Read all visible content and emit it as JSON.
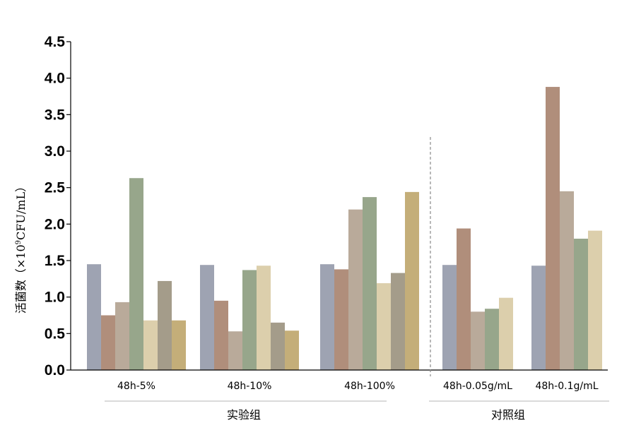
{
  "chart_data": {
    "type": "bar",
    "title": "",
    "xlabel": "",
    "ylabel": {
      "prefix": "活菌数（×10",
      "superscript": "9",
      "suffix": "CFU/mL）"
    },
    "ylim": [
      0,
      4.5
    ],
    "yticks": [
      "0.0",
      "0.5",
      "1.0",
      "1.5",
      "2.0",
      "2.5",
      "3.0",
      "3.5",
      "4.0",
      "4.5"
    ],
    "grid": false,
    "legend": "none",
    "categories": [
      {
        "label": "48h-5%",
        "values": [
          1.45,
          0.75,
          0.93,
          2.63,
          0.68,
          1.22,
          0.68
        ]
      },
      {
        "label": "48h-10%",
        "values": [
          1.44,
          0.95,
          0.53,
          1.37,
          1.43,
          0.65,
          0.54
        ]
      },
      {
        "label": "48h-100%",
        "values": [
          1.45,
          1.38,
          2.2,
          2.37,
          1.19,
          1.33,
          2.44
        ]
      },
      {
        "label": "48h-0.05g/mL",
        "values": [
          1.44,
          1.94,
          0.8,
          0.84,
          0.99
        ]
      },
      {
        "label": "48h-0.1g/mL",
        "values": [
          1.43,
          3.88,
          2.45,
          1.8,
          1.91
        ]
      }
    ],
    "bar_colors": [
      "#9ea3b2",
      "#b08e7b",
      "#b9aa9a",
      "#97a68b",
      "#dccfac",
      "#a49c8a",
      "#c4ae79"
    ],
    "groups": [
      {
        "label": "实验组",
        "categories": [
          0,
          1,
          2
        ]
      },
      {
        "label": "对照组",
        "categories": [
          3,
          4
        ]
      }
    ],
    "separator_style": "dashed"
  }
}
